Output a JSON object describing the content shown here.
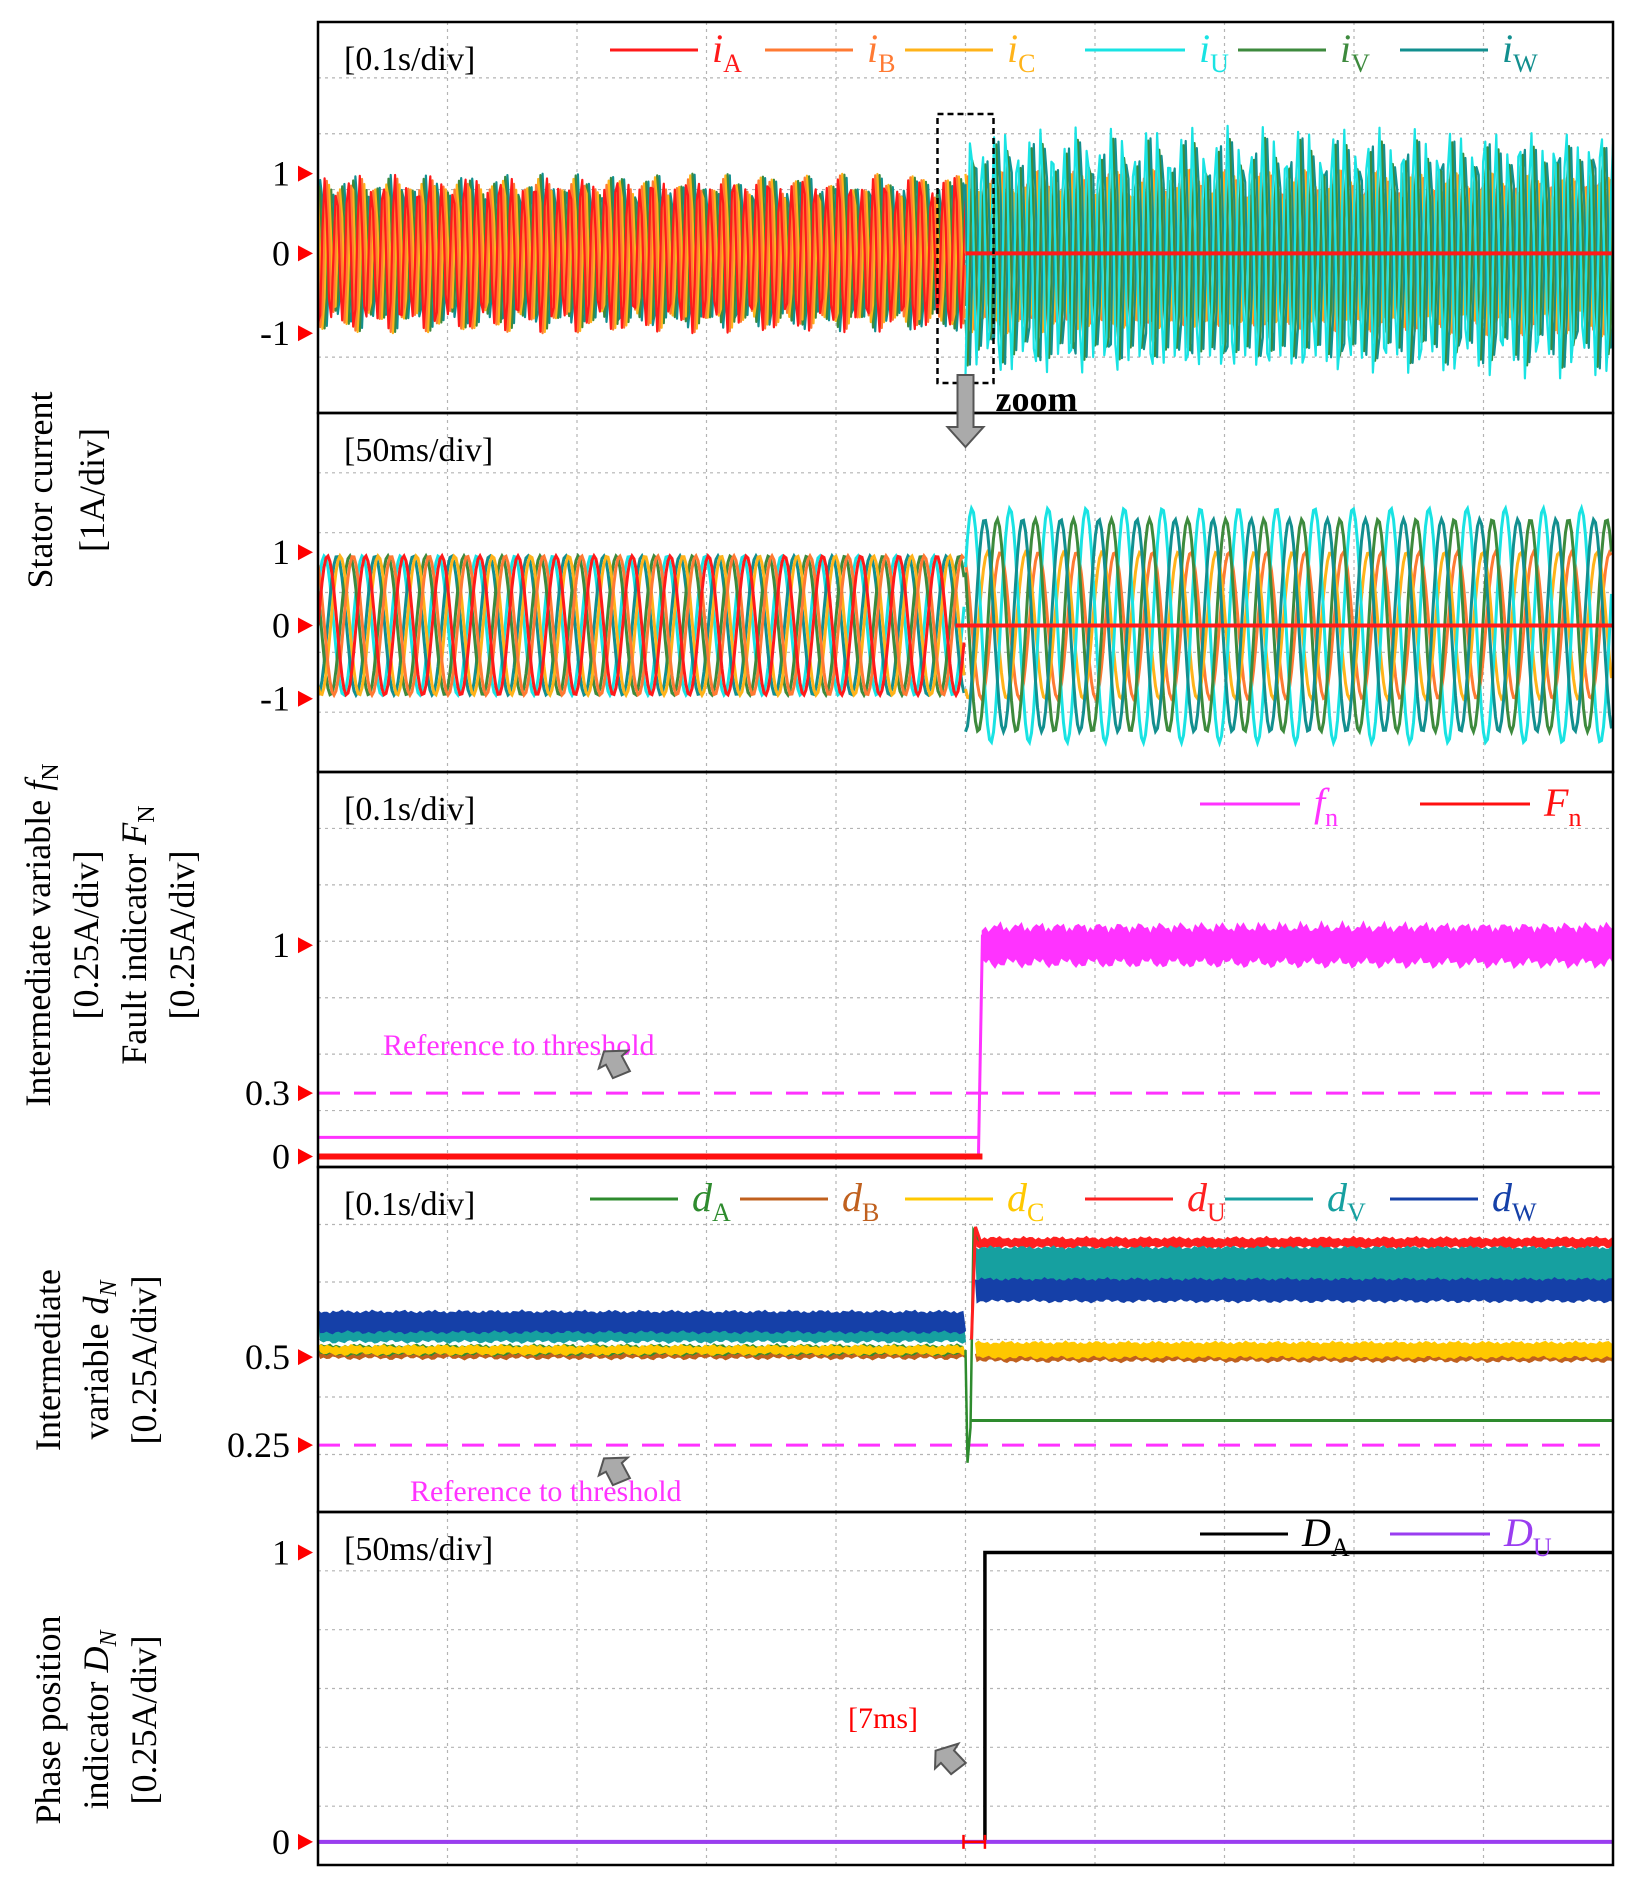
{
  "colors": {
    "iA": "#ff1a1a",
    "iB": "#ff7a33",
    "iC": "#ffb31a",
    "iU": "#19e3e3",
    "iV": "#3d8a3d",
    "iW": "#128f8f",
    "fn": "#ff33ff",
    "Fn": "#ff1010",
    "threshold": "#ff33ff",
    "dA": "#2e8b2e",
    "dB": "#c0601e",
    "dC": "#ffc800",
    "dU": "#ff2020",
    "dV": "#16a0a0",
    "dW": "#1540a8",
    "DA": "#000000",
    "DU": "#9a3df0",
    "marker": "#ff0000",
    "grid": "#b4b4b4"
  },
  "chart_data": [
    {
      "type": "line",
      "panel": "stator-current-overview",
      "time_scale": "[0.1s/div]",
      "x_divisions": 10,
      "fault_at_div": 5,
      "ylim": [
        -2.0,
        2.9
      ],
      "y_ticks": [
        {
          "label": "1",
          "value": 1
        },
        {
          "label": "0",
          "value": 0
        },
        {
          "label": "-1",
          "value": -1
        }
      ],
      "zero_marker": true,
      "series": [
        {
          "key": "iA",
          "name_main": "i",
          "name_sub": "A",
          "amplitude_before": 1.0,
          "amplitude_after": 0.0
        },
        {
          "key": "iB",
          "name_main": "i",
          "name_sub": "B",
          "amplitude_before": 1.0,
          "amplitude_after": 1.05
        },
        {
          "key": "iC",
          "name_main": "i",
          "name_sub": "C",
          "amplitude_before": 1.0,
          "amplitude_after": 1.05
        },
        {
          "key": "iU",
          "name_main": "i",
          "name_sub": "U",
          "amplitude_before": 1.0,
          "amplitude_after": 1.6
        },
        {
          "key": "iV",
          "name_main": "i",
          "name_sub": "V",
          "amplitude_before": 1.0,
          "amplitude_after": 1.45
        },
        {
          "key": "iW",
          "name_main": "i",
          "name_sub": "W",
          "amplitude_before": 1.0,
          "amplitude_after": 1.45
        }
      ],
      "annotation": "zoom"
    },
    {
      "type": "line",
      "panel": "stator-current-zoom",
      "time_scale": "[50ms/div]",
      "x_divisions": 10,
      "fault_at_div": 5,
      "ylim": [
        -2.0,
        2.9
      ],
      "y_ticks": [
        {
          "label": "1",
          "value": 1
        },
        {
          "label": "0",
          "value": 0
        },
        {
          "label": "-1",
          "value": -1
        }
      ],
      "zero_marker": true,
      "cycles_total": 34,
      "series": [
        {
          "key": "iA",
          "amplitude_before": 0.95,
          "amplitude_after": 0.0
        },
        {
          "key": "iB",
          "amplitude_before": 0.95,
          "amplitude_after": 1.0
        },
        {
          "key": "iC",
          "amplitude_before": 0.95,
          "amplitude_after": 1.0
        },
        {
          "key": "iU",
          "amplitude_before": 0.95,
          "amplitude_after": 1.6
        },
        {
          "key": "iV",
          "amplitude_before": 0.95,
          "amplitude_after": 1.45
        },
        {
          "key": "iW",
          "amplitude_before": 0.95,
          "amplitude_after": 1.45
        }
      ]
    },
    {
      "type": "line",
      "panel": "fault-indicator",
      "time_scale": "[0.1s/div]",
      "x_divisions": 10,
      "fault_at_div": 5.1,
      "ylim": [
        -0.05,
        1.82
      ],
      "y_ticks": [
        {
          "label": "1",
          "value": 1
        },
        {
          "label": "0.3",
          "value": 0.3
        },
        {
          "label": "0",
          "value": 0
        }
      ],
      "series": [
        {
          "key": "fn",
          "name_main": "f",
          "name_sub": "n",
          "value_before": 0.09,
          "value_after": 1.0
        },
        {
          "key": "Fn",
          "name_main": "F",
          "name_sub": "n",
          "value_before": 0.0,
          "value_after": 0.0
        }
      ],
      "threshold": 0.3,
      "annotation": "Reference to threshold"
    },
    {
      "type": "line",
      "panel": "intermediate-variable-d",
      "time_scale": "[0.1s/div]",
      "x_divisions": 10,
      "fault_at_div": 5.0,
      "ylim": [
        0.06,
        1.04
      ],
      "y_ticks": [
        {
          "label": "0.5",
          "value": 0.5
        },
        {
          "label": "0.25",
          "value": 0.25
        }
      ],
      "series": [
        {
          "key": "dA",
          "name_main": "d",
          "name_sub": "A",
          "value_before": 0.52,
          "value_after": 0.32
        },
        {
          "key": "dB",
          "name_main": "d",
          "name_sub": "B",
          "value_before": 0.51,
          "value_after": 0.5
        },
        {
          "key": "dC",
          "name_main": "d",
          "name_sub": "C",
          "value_before": 0.52,
          "value_after": 0.52
        },
        {
          "key": "dU",
          "name_main": "d",
          "name_sub": "U",
          "value_before": 0.6,
          "value_after": 0.82
        },
        {
          "key": "dV",
          "name_main": "d",
          "name_sub": "V",
          "value_before": 0.59,
          "value_after": 0.76
        },
        {
          "key": "dW",
          "name_main": "d",
          "name_sub": "W",
          "value_before": 0.6,
          "value_after": 0.69
        }
      ],
      "threshold": 0.25,
      "annotation": "Reference to threshold"
    },
    {
      "type": "line",
      "panel": "phase-position-indicator",
      "time_scale": "[50ms/div]",
      "x_divisions": 10,
      "fault_at_div": 5.0,
      "ylim": [
        -0.08,
        1.14
      ],
      "y_ticks": [
        {
          "label": "1",
          "value": 1
        },
        {
          "label": "0",
          "value": 0
        }
      ],
      "series": [
        {
          "key": "DA",
          "name_main": "D",
          "name_sub": "A",
          "value_before": 0,
          "value_after": 1,
          "step_at_div": 5.15
        },
        {
          "key": "DU",
          "name_main": "D",
          "name_sub": "U",
          "value_before": 0,
          "value_after": 0
        }
      ],
      "annotation": "[7ms]"
    }
  ],
  "ylabels": {
    "stator_line1": "Stator current",
    "stator_line2": "[1A/div]",
    "fault_line1_main": "Intermediate variable ",
    "fault_line1_var": "f",
    "fault_line1_sub": "N",
    "fault_line2": "[0.25A/div]",
    "fault_line3_main": "Fault indicator ",
    "fault_line3_var": "F",
    "fault_line3_sub": "N",
    "fault_line4": "[0.25A/div]",
    "d_line1": "Intermediate",
    "d_line2_main": "variable ",
    "d_line2_var": "d",
    "d_line2_sub": "N",
    "d_line3": "[0.25A/div]",
    "D_line1": "Phase position",
    "D_line2_main": "indicator ",
    "D_line2_var": "D",
    "D_line2_sub": "N",
    "D_line3": "[0.25A/div]"
  }
}
